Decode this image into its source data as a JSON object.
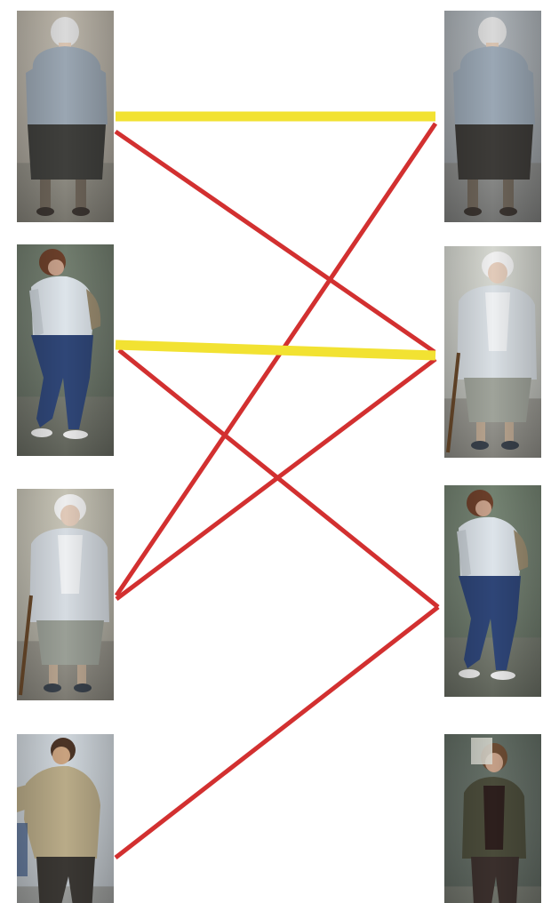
{
  "palette": {
    "background": "#ffffff",
    "match_correct": "#f2e232",
    "match_wrong": "#d23030"
  },
  "gallery_left": [
    {
      "id": "L1",
      "figure": "elderly-woman-back-view",
      "top": "#9aa6b2",
      "bottom": "#3f3f3c",
      "skin": "#d8c3b1",
      "hair": "#dadada",
      "bg": "#b9b3a7"
    },
    {
      "id": "L2",
      "figure": "woman-walking-jeans",
      "top": "#dde4ea",
      "bottom": "#2f4677",
      "skin": "#c7a08a",
      "hair": "#6b3f2a",
      "bg": "#6f7b6c"
    },
    {
      "id": "L3",
      "figure": "elderly-woman-cane-front",
      "top": "#d6dce2",
      "bottom": "#9a9f96",
      "skin": "#e0c9b8",
      "hair": "#eeeeee",
      "bg": "#c5c2b4"
    },
    {
      "id": "L4",
      "figure": "man-beige-jacket",
      "top": "#b9ab88",
      "bottom": "#3a3733",
      "skin": "#c9a27f",
      "hair": "#4b3426",
      "bg": "#cfd6dc"
    }
  ],
  "gallery_right": [
    {
      "id": "R1",
      "figure": "elderly-woman-back-view",
      "top": "#9aa7b4",
      "bottom": "#3d3b38",
      "skin": "#d8c3b1",
      "hair": "#d9d9d9",
      "bg": "#aab0b5"
    },
    {
      "id": "R2",
      "figure": "elderly-woman-cane-front",
      "top": "#d9dfe4",
      "bottom": "#9fa39a",
      "skin": "#e2cbba",
      "hair": "#f0f0f0",
      "bg": "#d4d6cf"
    },
    {
      "id": "R3",
      "figure": "woman-walking-jeans",
      "top": "#dde4ea",
      "bottom": "#2e4577",
      "skin": "#c7a08a",
      "hair": "#6b3f2a",
      "bg": "#71806f"
    },
    {
      "id": "R4",
      "figure": "woman-dark-jacket",
      "top": "#4a4b3a",
      "bottom": "#3a2f2c",
      "skin": "#c49f87",
      "hair": "#6b4b33",
      "bg": "#5f6a61"
    }
  ],
  "matches": [
    {
      "from": "L1",
      "to": "R1",
      "kind": "correct"
    },
    {
      "from": "L1",
      "to": "R2",
      "kind": "wrong"
    },
    {
      "from": "L2",
      "to": "R2",
      "kind": "correct"
    },
    {
      "from": "L2",
      "to": "R3",
      "kind": "wrong"
    },
    {
      "from": "L3",
      "to": "R1",
      "kind": "wrong"
    },
    {
      "from": "L3",
      "to": "R2",
      "kind": "wrong"
    },
    {
      "from": "L4",
      "to": "R3",
      "kind": "wrong"
    }
  ]
}
